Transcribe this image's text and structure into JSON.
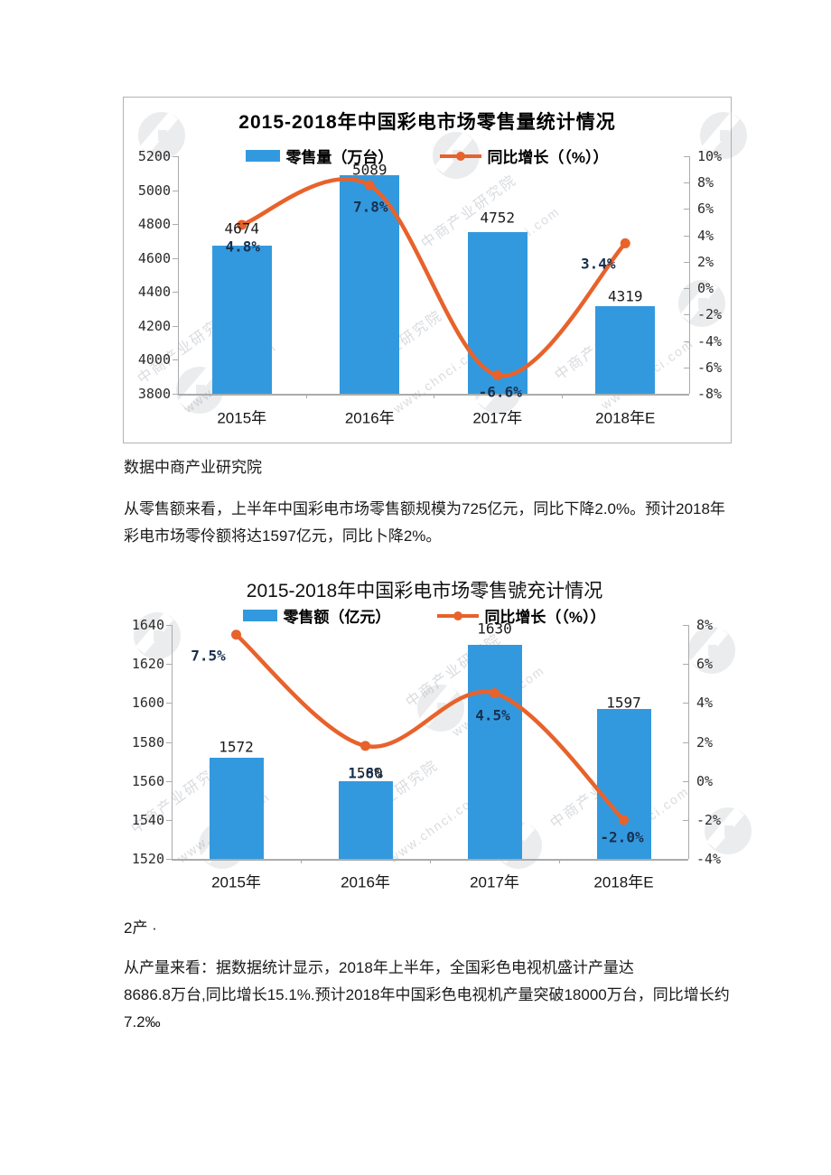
{
  "texts": {
    "source": "数据中商产业研究院",
    "para1": "从零售额来看，上半年中国彩电市场零售额规模为725亿元，同比下降2.0%。预计2018年\n彩电市场零伶额将达1597亿元，同比卜降2%。",
    "heading2": "2产 ·",
    "para2": "从产量来看：据数据统计显示，2018年上半年，全国彩色电视机盛计产量达\n8686.8万台,同比增长15.1%.预计2018年中国彩色电视机产量突破18000万台，同比增长约\n7.2‰"
  },
  "colors": {
    "bar": "#3399DE",
    "line": "#E8622B",
    "axis": "#ababab",
    "value_label": "#1a1a1a",
    "pct_label": "#17304f"
  },
  "watermark": {
    "brand": "中商产业研究院",
    "site": "www.chnci.com"
  },
  "chart_data": [
    {
      "type": "bar",
      "combo": "bar+line",
      "title": "2015-2018年中国彩电市场零售量统计情况",
      "categories": [
        "2015年",
        "2016年",
        "2017年",
        "2018年E"
      ],
      "series": [
        {
          "name": "零售量（万台）",
          "type": "bar",
          "axis": "left",
          "values": [
            4674,
            5089,
            4752,
            4319
          ],
          "labels": [
            "4674",
            "5089",
            "4752",
            "4319"
          ]
        },
        {
          "name": "同比增长（（%））",
          "type": "line",
          "axis": "right",
          "values": [
            4.8,
            7.8,
            -6.6,
            3.4
          ],
          "labels": [
            "4.8%",
            "7.8%",
            "-6.6%",
            "3.4%"
          ]
        }
      ],
      "left_axis": {
        "min": 3800,
        "max": 5200,
        "step": 200,
        "ticks": [
          "5200",
          "5000",
          "4800",
          "4600",
          "4400",
          "4200",
          "4000",
          "3800"
        ]
      },
      "right_axis": {
        "min": -8,
        "max": 10,
        "step": 2,
        "ticks": [
          "10%",
          "8%",
          "6%",
          "4%",
          "2%",
          "0%",
          "-2%",
          "-4%",
          "-6%",
          "-8%"
        ]
      },
      "legend_position": "top",
      "grid": false
    },
    {
      "type": "bar",
      "combo": "bar+line",
      "title": "2015-2018年中国彩电市场零售號充计情况",
      "categories": [
        "2015年",
        "2016年",
        "2017年",
        "2018年E"
      ],
      "series": [
        {
          "name": "零售额（亿元）",
          "type": "bar",
          "axis": "left",
          "values": [
            1572,
            1560,
            1630,
            1597
          ],
          "labels": [
            "1572",
            "1560",
            "1630",
            "1597"
          ]
        },
        {
          "name": "同比增长（（%））",
          "type": "line",
          "axis": "right",
          "values": [
            7.5,
            1.8,
            4.5,
            -2.0
          ],
          "labels": [
            "7.5%",
            "1.8%",
            "4.5%",
            "-2.0%"
          ]
        }
      ],
      "left_axis": {
        "min": 1520,
        "max": 1640,
        "step": 20,
        "ticks": [
          "1640",
          "1620",
          "1600",
          "1580",
          "1560",
          "1540",
          "1520"
        ]
      },
      "right_axis": {
        "min": -4,
        "max": 8,
        "step": 2,
        "ticks": [
          "8%",
          "6%",
          "4%",
          "2%",
          "0%",
          "-2%",
          "-4%"
        ]
      },
      "legend_position": "top",
      "grid": false
    }
  ]
}
